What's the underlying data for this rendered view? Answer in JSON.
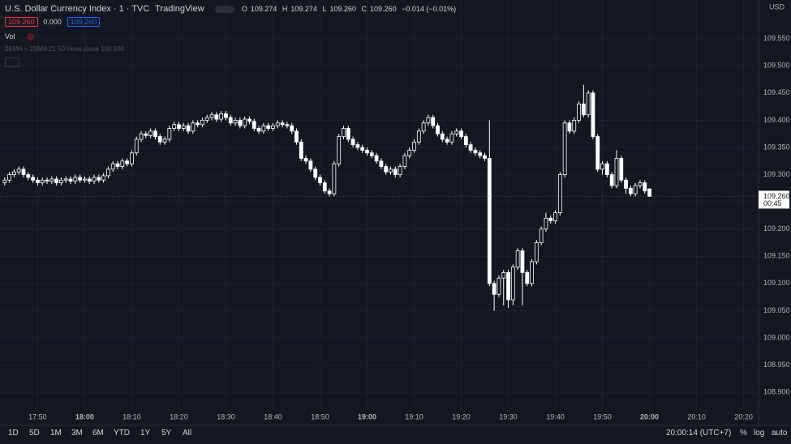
{
  "toolbar": {
    "symbol": "U.S. Dollar Currency Index · 1 · TVC",
    "source": "TradingView",
    "o_label": "O",
    "o": "109.274",
    "h_label": "H",
    "h": "109.274",
    "l_label": "L",
    "l": "109.260",
    "c_label": "C",
    "c": "109.260",
    "change": "−0.014 (−0.01%)",
    "bid": "109.260",
    "spread": "0.000",
    "ask": "109.260",
    "vol": "Vol",
    "indicator": "2EMA + 2SMA 21 50 close close 100 200"
  },
  "chart_data": {
    "type": "candlestick",
    "currency": "USD",
    "up_color": "#ffffff",
    "down_color": "#ffffff",
    "x": [
      "17:43",
      "17:44",
      "17:45",
      "17:46",
      "17:47",
      "17:48",
      "17:49",
      "17:50",
      "17:51",
      "17:52",
      "17:53",
      "17:54",
      "17:55",
      "17:56",
      "17:57",
      "17:58",
      "17:59",
      "18:00",
      "18:01",
      "18:02",
      "18:03",
      "18:04",
      "18:05",
      "18:06",
      "18:07",
      "18:08",
      "18:09",
      "18:10",
      "18:11",
      "18:12",
      "18:13",
      "18:14",
      "18:15",
      "18:16",
      "18:17",
      "18:18",
      "18:19",
      "18:20",
      "18:21",
      "18:22",
      "18:23",
      "18:24",
      "18:25",
      "18:26",
      "18:27",
      "18:28",
      "18:29",
      "18:30",
      "18:31",
      "18:32",
      "18:33",
      "18:34",
      "18:35",
      "18:36",
      "18:37",
      "18:38",
      "18:39",
      "18:40",
      "18:41",
      "18:42",
      "18:43",
      "18:44",
      "18:45",
      "18:46",
      "18:47",
      "18:48",
      "18:49",
      "18:50",
      "18:51",
      "18:52",
      "18:53",
      "18:54",
      "18:55",
      "18:56",
      "18:57",
      "18:58",
      "18:59",
      "19:00",
      "19:01",
      "19:02",
      "19:03",
      "19:04",
      "19:05",
      "19:06",
      "19:07",
      "19:08",
      "19:09",
      "19:10",
      "19:11",
      "19:12",
      "19:13",
      "19:14",
      "19:15",
      "19:16",
      "19:17",
      "19:18",
      "19:19",
      "19:20",
      "19:21",
      "19:22",
      "19:23",
      "19:24",
      "19:25",
      "19:26",
      "19:27",
      "19:28",
      "19:29",
      "19:30",
      "19:31",
      "19:32",
      "19:33",
      "19:34",
      "19:35",
      "19:36",
      "19:37",
      "19:38",
      "19:39",
      "19:40",
      "19:41",
      "19:42",
      "19:43",
      "19:44",
      "19:45",
      "19:46",
      "19:47",
      "19:48",
      "19:49",
      "19:50",
      "19:51",
      "19:52",
      "19:53",
      "19:54",
      "19:55",
      "19:56",
      "19:57",
      "19:58",
      "19:59",
      "20:00"
    ],
    "open": [
      109.285,
      109.29,
      109.3,
      109.305,
      109.31,
      109.3,
      109.295,
      109.29,
      109.285,
      109.29,
      109.288,
      109.292,
      109.285,
      109.29,
      109.292,
      109.288,
      109.295,
      109.29,
      109.292,
      109.288,
      109.295,
      109.29,
      109.298,
      109.31,
      109.32,
      109.315,
      109.325,
      109.32,
      109.34,
      109.365,
      109.375,
      109.372,
      109.38,
      109.37,
      109.36,
      109.365,
      109.385,
      109.392,
      109.385,
      109.39,
      109.38,
      109.395,
      109.392,
      109.4,
      109.405,
      109.41,
      109.402,
      109.412,
      109.405,
      109.395,
      109.4,
      109.39,
      109.402,
      109.398,
      109.385,
      109.38,
      109.39,
      109.385,
      109.39,
      109.395,
      109.392,
      109.39,
      109.38,
      109.36,
      109.33,
      109.325,
      109.31,
      109.295,
      109.285,
      109.27,
      109.265,
      109.32,
      109.37,
      109.385,
      109.365,
      109.355,
      109.35,
      109.345,
      109.34,
      109.335,
      109.325,
      109.315,
      109.305,
      109.31,
      109.3,
      109.315,
      109.335,
      109.345,
      109.36,
      109.38,
      109.395,
      109.405,
      109.39,
      109.375,
      109.365,
      109.36,
      109.375,
      109.38,
      109.37,
      109.355,
      109.345,
      109.34,
      109.335,
      109.33,
      109.1,
      109.08,
      109.11,
      109.12,
      109.07,
      109.13,
      109.16,
      109.12,
      109.1,
      109.14,
      109.175,
      109.2,
      109.22,
      109.215,
      109.23,
      109.3,
      109.395,
      109.38,
      109.4,
      109.43,
      109.41,
      109.45,
      109.37,
      109.31,
      109.32,
      109.3,
      109.28,
      109.33,
      109.29,
      109.275,
      109.265,
      109.28,
      109.285,
      109.274
    ],
    "high": [
      109.295,
      109.305,
      109.31,
      109.315,
      109.315,
      109.305,
      109.3,
      109.295,
      109.295,
      109.295,
      109.297,
      109.297,
      109.295,
      109.297,
      109.297,
      109.3,
      109.3,
      109.297,
      109.297,
      109.3,
      109.3,
      109.303,
      109.315,
      109.325,
      109.325,
      109.33,
      109.33,
      109.345,
      109.37,
      109.38,
      109.38,
      109.385,
      109.385,
      109.375,
      109.37,
      109.39,
      109.397,
      109.397,
      109.395,
      109.395,
      109.4,
      109.4,
      109.405,
      109.41,
      109.415,
      109.415,
      109.417,
      109.417,
      109.41,
      109.405,
      109.405,
      109.407,
      109.407,
      109.403,
      109.39,
      109.395,
      109.395,
      109.395,
      109.4,
      109.4,
      109.397,
      109.395,
      109.385,
      109.365,
      109.335,
      109.33,
      109.315,
      109.3,
      109.29,
      109.275,
      109.325,
      109.375,
      109.39,
      109.39,
      109.37,
      109.36,
      109.355,
      109.35,
      109.345,
      109.34,
      109.33,
      109.32,
      109.315,
      109.315,
      109.32,
      109.34,
      109.35,
      109.365,
      109.385,
      109.4,
      109.41,
      109.41,
      109.395,
      109.38,
      109.37,
      109.38,
      109.385,
      109.385,
      109.375,
      109.36,
      109.35,
      109.345,
      109.34,
      109.4,
      109.105,
      109.115,
      109.125,
      109.125,
      109.135,
      109.165,
      109.165,
      109.125,
      109.145,
      109.18,
      109.205,
      109.23,
      109.225,
      109.235,
      109.305,
      109.4,
      109.4,
      109.405,
      109.435,
      109.465,
      109.455,
      109.455,
      109.375,
      109.325,
      109.325,
      109.305,
      109.345,
      109.335,
      109.295,
      109.28,
      109.285,
      109.29,
      109.29,
      109.274
    ],
    "low": [
      109.28,
      109.285,
      109.295,
      109.3,
      109.295,
      109.29,
      109.285,
      109.28,
      109.28,
      109.283,
      109.283,
      109.28,
      109.28,
      109.285,
      109.283,
      109.283,
      109.285,
      109.285,
      109.283,
      109.283,
      109.285,
      109.285,
      109.293,
      109.305,
      109.31,
      109.31,
      109.315,
      109.315,
      109.335,
      109.36,
      109.367,
      109.367,
      109.365,
      109.355,
      109.355,
      109.36,
      109.38,
      109.38,
      109.38,
      109.375,
      109.375,
      109.387,
      109.387,
      109.395,
      109.4,
      109.397,
      109.397,
      109.4,
      109.39,
      109.39,
      109.385,
      109.385,
      109.393,
      109.38,
      109.375,
      109.375,
      109.38,
      109.38,
      109.385,
      109.387,
      109.385,
      109.375,
      109.355,
      109.325,
      109.32,
      109.305,
      109.29,
      109.28,
      109.265,
      109.26,
      109.26,
      109.315,
      109.365,
      109.36,
      109.35,
      109.345,
      109.34,
      109.335,
      109.33,
      109.32,
      109.31,
      109.3,
      109.3,
      109.295,
      109.295,
      109.31,
      109.33,
      109.34,
      109.355,
      109.375,
      109.39,
      109.385,
      109.37,
      109.36,
      109.355,
      109.355,
      109.37,
      109.365,
      109.35,
      109.34,
      109.335,
      109.33,
      109.325,
      109.095,
      109.05,
      109.075,
      109.06,
      109.055,
      109.06,
      109.125,
      109.06,
      109.095,
      109.095,
      109.135,
      109.17,
      109.195,
      109.21,
      109.21,
      109.225,
      109.295,
      109.375,
      109.375,
      109.395,
      109.405,
      109.405,
      109.365,
      109.305,
      109.3,
      109.295,
      109.275,
      109.275,
      109.285,
      109.265,
      109.26,
      109.26,
      109.275,
      109.265,
      109.26
    ],
    "close": [
      109.29,
      109.3,
      109.305,
      109.31,
      109.3,
      109.295,
      109.29,
      109.285,
      109.29,
      109.288,
      109.292,
      109.285,
      109.29,
      109.292,
      109.288,
      109.295,
      109.29,
      109.292,
      109.288,
      109.295,
      109.29,
      109.298,
      109.31,
      109.32,
      109.315,
      109.325,
      109.32,
      109.34,
      109.365,
      109.375,
      109.372,
      109.38,
      109.37,
      109.36,
      109.365,
      109.385,
      109.392,
      109.385,
      109.39,
      109.38,
      109.395,
      109.392,
      109.4,
      109.405,
      109.41,
      109.402,
      109.412,
      109.405,
      109.395,
      109.4,
      109.39,
      109.402,
      109.398,
      109.385,
      109.38,
      109.39,
      109.385,
      109.39,
      109.395,
      109.392,
      109.39,
      109.38,
      109.36,
      109.33,
      109.325,
      109.31,
      109.295,
      109.285,
      109.27,
      109.265,
      109.32,
      109.37,
      109.385,
      109.365,
      109.355,
      109.35,
      109.345,
      109.34,
      109.335,
      109.325,
      109.315,
      109.305,
      109.31,
      109.3,
      109.315,
      109.335,
      109.345,
      109.36,
      109.38,
      109.395,
      109.405,
      109.39,
      109.375,
      109.365,
      109.36,
      109.375,
      109.38,
      109.37,
      109.355,
      109.345,
      109.34,
      109.335,
      109.33,
      109.1,
      109.08,
      109.11,
      109.12,
      109.07,
      109.13,
      109.16,
      109.12,
      109.1,
      109.14,
      109.175,
      109.2,
      109.22,
      109.215,
      109.23,
      109.3,
      109.395,
      109.38,
      109.4,
      109.43,
      109.41,
      109.45,
      109.37,
      109.31,
      109.32,
      109.3,
      109.28,
      109.33,
      109.29,
      109.275,
      109.265,
      109.28,
      109.285,
      109.27,
      109.26
    ],
    "xlim": [
      "17:42",
      "20:23"
    ],
    "xticks": [
      "17:50",
      "18:00",
      "18:10",
      "18:20",
      "18:30",
      "18:40",
      "18:50",
      "19:00",
      "19:10",
      "19:20",
      "19:30",
      "19:40",
      "19:50",
      "20:00",
      "20:10",
      "20:20"
    ],
    "ylim": [
      108.869,
      109.621
    ],
    "yticks": [
      {
        "value": 108.9,
        "label": "108.900"
      },
      {
        "value": 108.95,
        "label": "108.950"
      },
      {
        "value": 109,
        "label": "109.000"
      },
      {
        "value": 109.05,
        "label": "109.050"
      },
      {
        "value": 109.1,
        "label": "109.100"
      },
      {
        "value": 109.15,
        "label": "109.150"
      },
      {
        "value": 109.2,
        "label": "109.200"
      },
      {
        "value": 109.25,
        "label": "109.250"
      },
      {
        "value": 109.3,
        "label": "109.300"
      },
      {
        "value": 109.35,
        "label": "109.350"
      },
      {
        "value": 109.4,
        "label": "109.400"
      },
      {
        "value": 109.45,
        "label": "109.450"
      },
      {
        "value": 109.5,
        "label": "109.500"
      },
      {
        "value": 109.55,
        "label": "109.550"
      }
    ],
    "grid": true,
    "last_price": {
      "value": 109.26,
      "label": "109.260"
    },
    "countdown": "00:45"
  },
  "bottom_bar": {
    "ranges": [
      "1D",
      "5D",
      "1M",
      "3M",
      "6M",
      "YTD",
      "1Y",
      "5Y",
      "All"
    ],
    "clock": "20:00:14 (UTC+7)",
    "options": [
      "%",
      "log",
      "auto"
    ]
  }
}
